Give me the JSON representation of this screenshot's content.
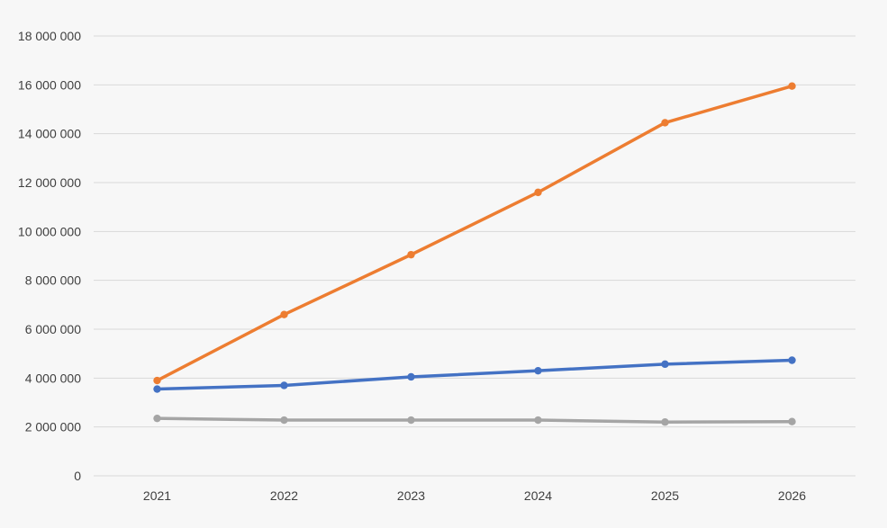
{
  "chart_data": {
    "type": "line",
    "title": "",
    "xlabel": "",
    "ylabel": "",
    "categories": [
      "2021",
      "2022",
      "2023",
      "2024",
      "2025",
      "2026"
    ],
    "ylim": [
      0,
      18000000
    ],
    "yticks": [
      0,
      2000000,
      4000000,
      6000000,
      8000000,
      10000000,
      12000000,
      14000000,
      16000000,
      18000000
    ],
    "ytick_labels": [
      "0",
      "2 000 000",
      "4 000 000",
      "6 000 000",
      "8 000 000",
      "10 000 000",
      "12 000 000",
      "14 000 000",
      "16 000 000",
      "18 000 000"
    ],
    "grid": true,
    "legend": "none",
    "series": [
      {
        "color": "#ed7d31",
        "values": [
          3900000,
          6600000,
          9050000,
          11600000,
          14450000,
          15950000
        ]
      },
      {
        "color": "#4472c4",
        "values": [
          3550000,
          3700000,
          4050000,
          4300000,
          4570000,
          4730000
        ]
      },
      {
        "color": "#a5a5a5",
        "values": [
          2350000,
          2280000,
          2280000,
          2280000,
          2200000,
          2220000
        ]
      }
    ]
  }
}
